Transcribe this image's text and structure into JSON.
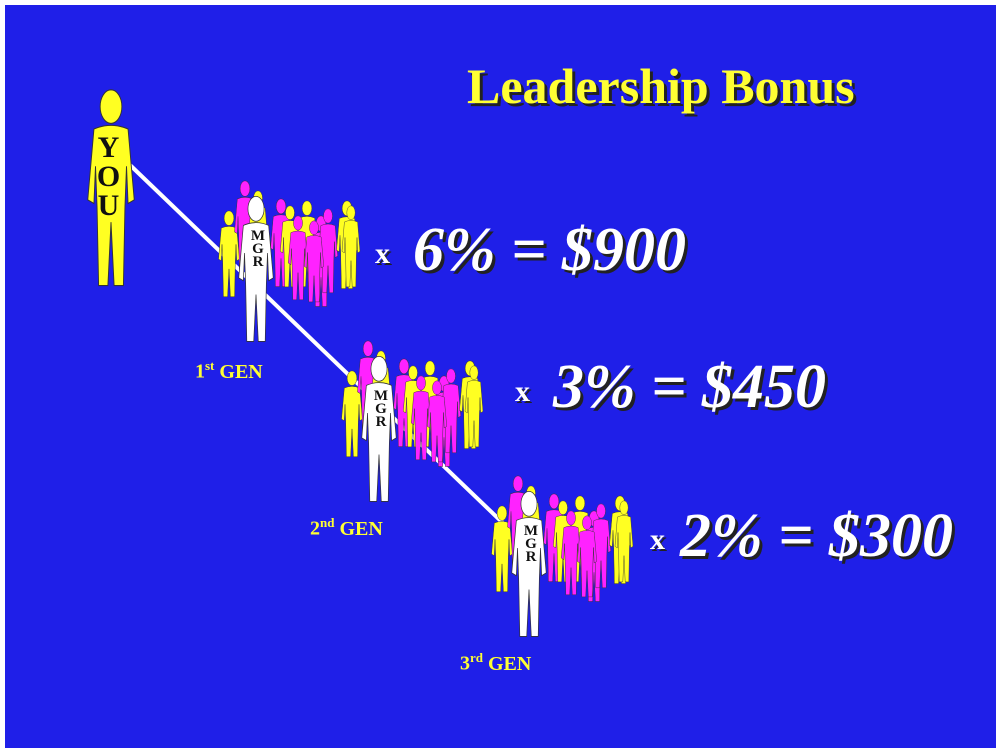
{
  "title": "Leadership Bonus",
  "you": {
    "label": "YOU"
  },
  "generations": [
    {
      "ordinal": "1",
      "suffix": "st",
      "label": "GEN",
      "manager": "MGR",
      "multiplier": "x",
      "formula": "6% = $900"
    },
    {
      "ordinal": "2",
      "suffix": "nd",
      "label": "GEN",
      "manager": "MGR",
      "multiplier": "x",
      "formula": "3% = $450"
    },
    {
      "ordinal": "3",
      "suffix": "rd",
      "label": "GEN",
      "manager": "MGR",
      "multiplier": "x",
      "formula": "2% = $300"
    }
  ]
}
